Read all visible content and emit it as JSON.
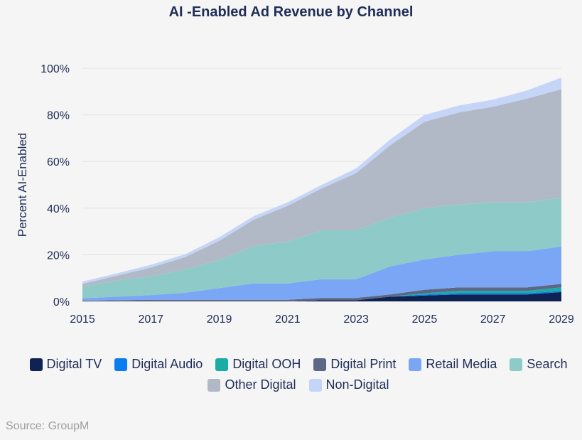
{
  "chart_data": {
    "type": "area",
    "stacked": true,
    "title": "AI -Enabled Ad Revenue by Channel",
    "ylabel": "Percent AI-Enabled",
    "xlabel": "",
    "ylim": [
      0,
      100
    ],
    "y_ticks": [
      "0%",
      "20%",
      "40%",
      "60%",
      "80%",
      "100%"
    ],
    "x_ticks": [
      "2015",
      "2017",
      "2019",
      "2021",
      "2023",
      "2025",
      "2027",
      "2029"
    ],
    "x": [
      2015,
      2016,
      2017,
      2018,
      2019,
      2020,
      2021,
      2022,
      2023,
      2024,
      2025,
      2026,
      2027,
      2028,
      2029
    ],
    "legend_position": "bottom",
    "grid": true,
    "series": [
      {
        "name": "Digital TV",
        "color": "#0f2352",
        "values": [
          0,
          0,
          0,
          0,
          0,
          0,
          0,
          0.5,
          0.5,
          2,
          2.5,
          3,
          3,
          3,
          4
        ]
      },
      {
        "name": "Digital Audio",
        "color": "#0a7cf0",
        "values": [
          0,
          0,
          0,
          0,
          0,
          0,
          0,
          0,
          0,
          0,
          0.5,
          0.5,
          0.5,
          0.5,
          0.5
        ]
      },
      {
        "name": "Digital OOH",
        "color": "#1aada5",
        "values": [
          0,
          0,
          0,
          0,
          0,
          0,
          0,
          0,
          0,
          0,
          0.5,
          1,
          1,
          1,
          1.5
        ]
      },
      {
        "name": "Digital Print",
        "color": "#5c6785",
        "values": [
          0.3,
          0.5,
          0.7,
          0.7,
          0.7,
          0.7,
          0.7,
          1,
          1,
          1,
          1.5,
          1.5,
          1.5,
          1.5,
          1.5
        ]
      },
      {
        "name": "Retail Media",
        "color": "#7aa6f5",
        "values": [
          1,
          1.5,
          2,
          3,
          5,
          7,
          7,
          8,
          8,
          12,
          13,
          14,
          15.5,
          15.5,
          16
        ]
      },
      {
        "name": "Search",
        "color": "#8ecbc8",
        "values": [
          5,
          7,
          8,
          10,
          12,
          16,
          18,
          21,
          21,
          21,
          22,
          21.5,
          21,
          21,
          21
        ]
      },
      {
        "name": "Other Digital",
        "color": "#b1b9c6",
        "values": [
          1.2,
          2,
          3.8,
          5.3,
          8.3,
          11.3,
          15.3,
          18,
          24.5,
          31,
          37,
          39.5,
          41,
          44.5,
          46.5
        ]
      },
      {
        "name": "Non-Digital",
        "color": "#c4d5f7",
        "values": [
          1,
          1,
          1.2,
          1.2,
          1.5,
          1.5,
          1.5,
          1.5,
          2,
          2.5,
          3,
          3,
          3,
          3.5,
          5
        ]
      }
    ]
  },
  "source_text": "Source: GroupM"
}
